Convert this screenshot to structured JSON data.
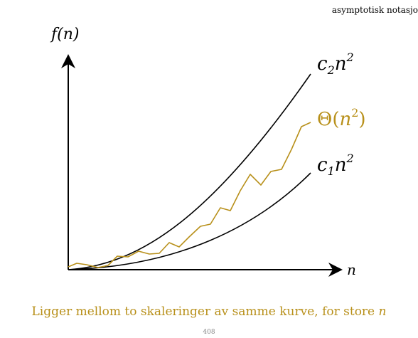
{
  "header": {
    "text": "asymptotisk notasjo"
  },
  "axes": {
    "y_label": "f(n)",
    "x_label": "n"
  },
  "curves": [
    {
      "id": "upper",
      "label_coef": "c",
      "label_sub": "2",
      "label_var": "n",
      "label_exp": "2",
      "color": "#000000"
    },
    {
      "id": "theta",
      "label_fn": "Θ",
      "label_var": "n",
      "label_exp": "2",
      "color": "#b8901a"
    },
    {
      "id": "lower",
      "label_coef": "c",
      "label_sub": "1",
      "label_var": "n",
      "label_exp": "2",
      "color": "#000000"
    }
  ],
  "caption": {
    "main": "Ligger mellom to skaleringer av samme kurve, for store",
    "var": "n"
  },
  "page_number": "408",
  "colors": {
    "accent": "#b8901a",
    "axis": "#000000"
  }
}
